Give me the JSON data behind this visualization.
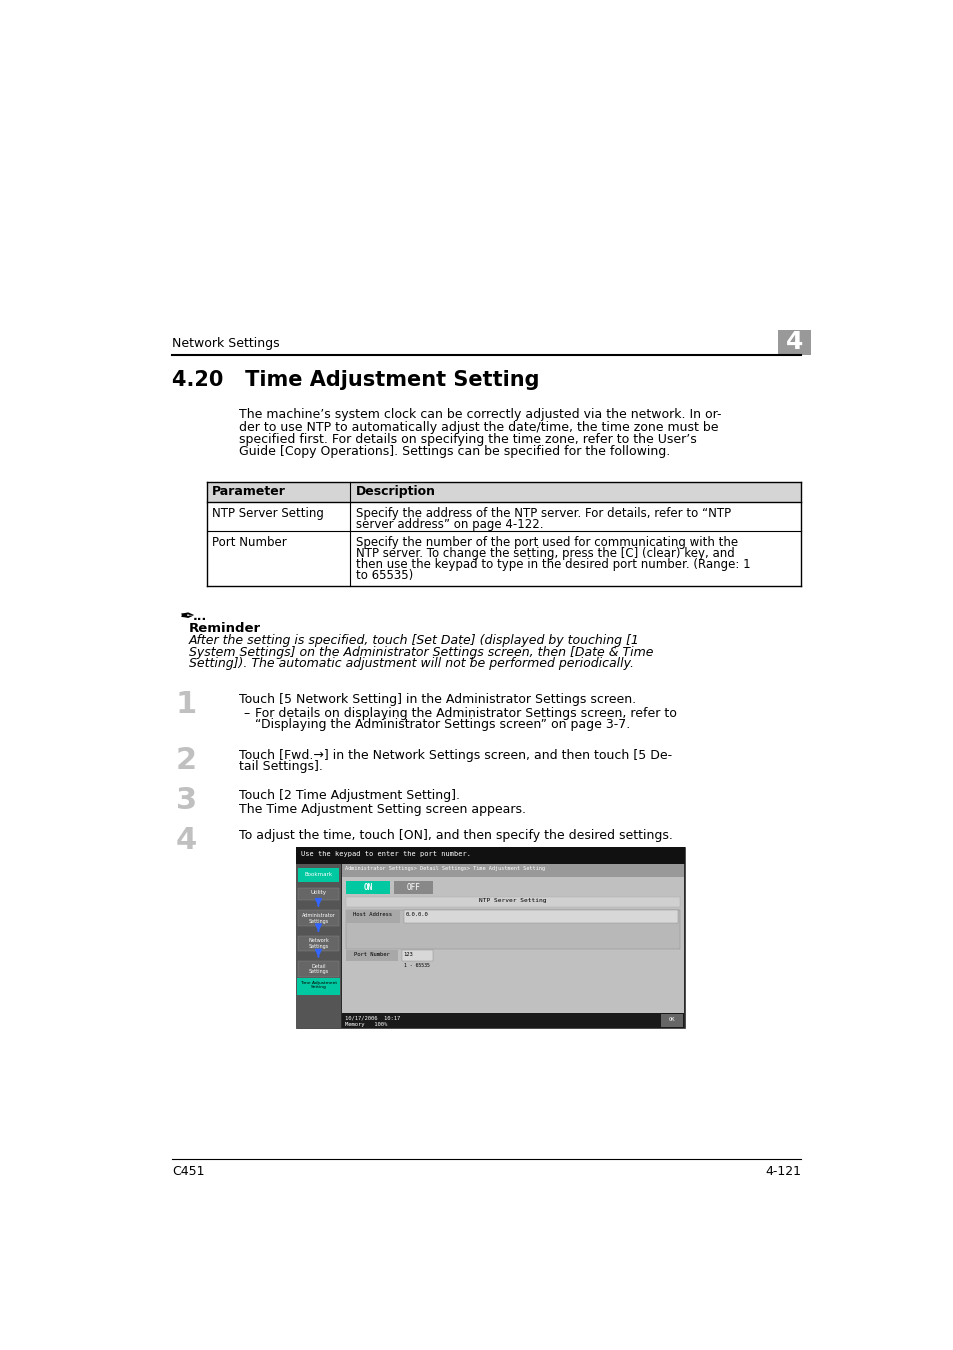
{
  "bg_color": "#ffffff",
  "header_text": "Network Settings",
  "header_chapter": "4",
  "section_title": "4.20   Time Adjustment Setting",
  "intro_text": [
    "The machine’s system clock can be correctly adjusted via the network. In or-",
    "der to use NTP to automatically adjust the date/time, the time zone must be",
    "specified first. For details on specifying the time zone, refer to the User’s",
    "Guide [Copy Operations]. Settings can be specified for the following."
  ],
  "table_header": [
    "Parameter",
    "Description"
  ],
  "table_rows": [
    [
      "NTP Server Setting",
      [
        "Specify the address of the NTP server. For details, refer to “NTP",
        "server address” on page 4-122."
      ]
    ],
    [
      "Port Number",
      [
        "Specify the number of the port used for communicating with the",
        "NTP server. To change the setting, press the [C] (clear) key, and",
        "then use the keypad to type in the desired port number. (Range: 1",
        "to 65535)"
      ]
    ]
  ],
  "reminder_title": "Reminder",
  "reminder_lines": [
    "After the setting is specified, touch [Set Date] (displayed by touching [1",
    "System Settings] on the Administrator Settings screen, then [Date & Time",
    "Setting]). The automatic adjustment will not be performed periodically."
  ],
  "step1_text": "Touch [5 Network Setting] in the Administrator Settings screen.",
  "step1_sub": [
    "For details on displaying the Administrator Settings screen, refer to",
    "“Displaying the Administrator Settings screen” on page 3-7."
  ],
  "step2_lines": [
    "Touch [Fwd.→] in the Network Settings screen, and then touch [5 De-",
    "tail Settings]."
  ],
  "step3_text": "Touch [2 Time Adjustment Setting].",
  "step3_sub": "The Time Adjustment Setting screen appears.",
  "step4_text": "To adjust the time, touch [ON], and then specify the desired settings.",
  "footer_left": "C451",
  "footer_right": "4-121",
  "lm": 68,
  "rm": 880,
  "indent1": 155,
  "indent2": 185
}
